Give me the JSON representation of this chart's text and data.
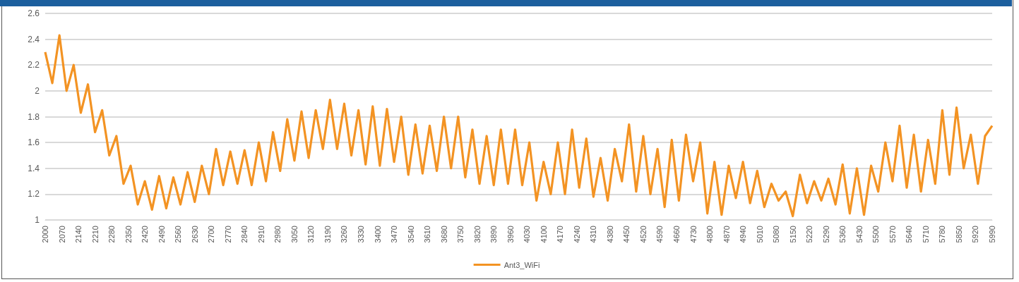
{
  "chart_data": {
    "type": "line",
    "xlim": [
      2000,
      5990
    ],
    "xticks": [
      2000,
      2070,
      2140,
      2210,
      2280,
      2350,
      2420,
      2490,
      2560,
      2630,
      2700,
      2770,
      2840,
      2910,
      2980,
      3050,
      3120,
      3190,
      3260,
      3330,
      3400,
      3470,
      3540,
      3610,
      3680,
      3750,
      3820,
      3890,
      3960,
      4030,
      4100,
      4170,
      4240,
      4310,
      4380,
      4450,
      4520,
      4590,
      4660,
      4730,
      4800,
      4870,
      4940,
      5010,
      5080,
      5150,
      5220,
      5290,
      5360,
      5430,
      5500,
      5570,
      5640,
      5710,
      5780,
      5850,
      5920,
      5990
    ],
    "ylim": [
      1,
      2.6
    ],
    "yticks": [
      1,
      1.2,
      1.4,
      1.6,
      1.8,
      2,
      2.2,
      2.4,
      2.6
    ],
    "grid": "y",
    "legend": "bottom",
    "marker": "none",
    "line_style": "solid",
    "x": [
      2000,
      2030,
      2060,
      2090,
      2120,
      2150,
      2180,
      2210,
      2240,
      2270,
      2300,
      2330,
      2360,
      2390,
      2420,
      2450,
      2480,
      2510,
      2540,
      2570,
      2600,
      2630,
      2660,
      2690,
      2720,
      2750,
      2780,
      2810,
      2840,
      2870,
      2900,
      2930,
      2960,
      2990,
      3020,
      3050,
      3080,
      3110,
      3140,
      3170,
      3200,
      3230,
      3260,
      3290,
      3320,
      3350,
      3380,
      3410,
      3440,
      3470,
      3500,
      3530,
      3560,
      3590,
      3620,
      3650,
      3680,
      3710,
      3740,
      3770,
      3800,
      3830,
      3860,
      3890,
      3920,
      3950,
      3980,
      4010,
      4040,
      4070,
      4100,
      4130,
      4160,
      4190,
      4220,
      4250,
      4280,
      4310,
      4340,
      4370,
      4400,
      4430,
      4460,
      4490,
      4520,
      4550,
      4580,
      4610,
      4640,
      4670,
      4700,
      4730,
      4760,
      4790,
      4820,
      4850,
      4880,
      4910,
      4940,
      4970,
      5000,
      5030,
      5060,
      5090,
      5120,
      5150,
      5180,
      5210,
      5240,
      5270,
      5300,
      5330,
      5360,
      5390,
      5420,
      5450,
      5480,
      5510,
      5540,
      5570,
      5600,
      5630,
      5660,
      5690,
      5720,
      5750,
      5780,
      5810,
      5840,
      5870,
      5900,
      5930,
      5960,
      5990
    ],
    "series": [
      {
        "name": "Ant3_WiFi",
        "color": "#f39323",
        "values": [
          2.3,
          2.06,
          2.43,
          2.0,
          2.2,
          1.83,
          2.05,
          1.68,
          1.85,
          1.5,
          1.65,
          1.28,
          1.42,
          1.12,
          1.3,
          1.08,
          1.34,
          1.09,
          1.33,
          1.12,
          1.37,
          1.14,
          1.42,
          1.2,
          1.55,
          1.27,
          1.53,
          1.28,
          1.54,
          1.27,
          1.6,
          1.3,
          1.68,
          1.38,
          1.78,
          1.46,
          1.84,
          1.48,
          1.85,
          1.55,
          1.93,
          1.55,
          1.9,
          1.5,
          1.85,
          1.43,
          1.88,
          1.42,
          1.86,
          1.45,
          1.8,
          1.35,
          1.74,
          1.36,
          1.73,
          1.38,
          1.8,
          1.4,
          1.8,
          1.33,
          1.7,
          1.28,
          1.65,
          1.27,
          1.7,
          1.28,
          1.7,
          1.27,
          1.6,
          1.15,
          1.45,
          1.2,
          1.6,
          1.2,
          1.7,
          1.25,
          1.63,
          1.18,
          1.48,
          1.15,
          1.55,
          1.3,
          1.74,
          1.22,
          1.65,
          1.2,
          1.55,
          1.1,
          1.62,
          1.15,
          1.66,
          1.3,
          1.6,
          1.05,
          1.45,
          1.04,
          1.42,
          1.17,
          1.45,
          1.13,
          1.38,
          1.1,
          1.28,
          1.15,
          1.22,
          1.03,
          1.35,
          1.13,
          1.3,
          1.15,
          1.32,
          1.12,
          1.43,
          1.05,
          1.4,
          1.04,
          1.42,
          1.22,
          1.6,
          1.3,
          1.73,
          1.25,
          1.66,
          1.22,
          1.62,
          1.28,
          1.85,
          1.35,
          1.87,
          1.4,
          1.66,
          1.28,
          1.65,
          1.73
        ]
      }
    ]
  }
}
